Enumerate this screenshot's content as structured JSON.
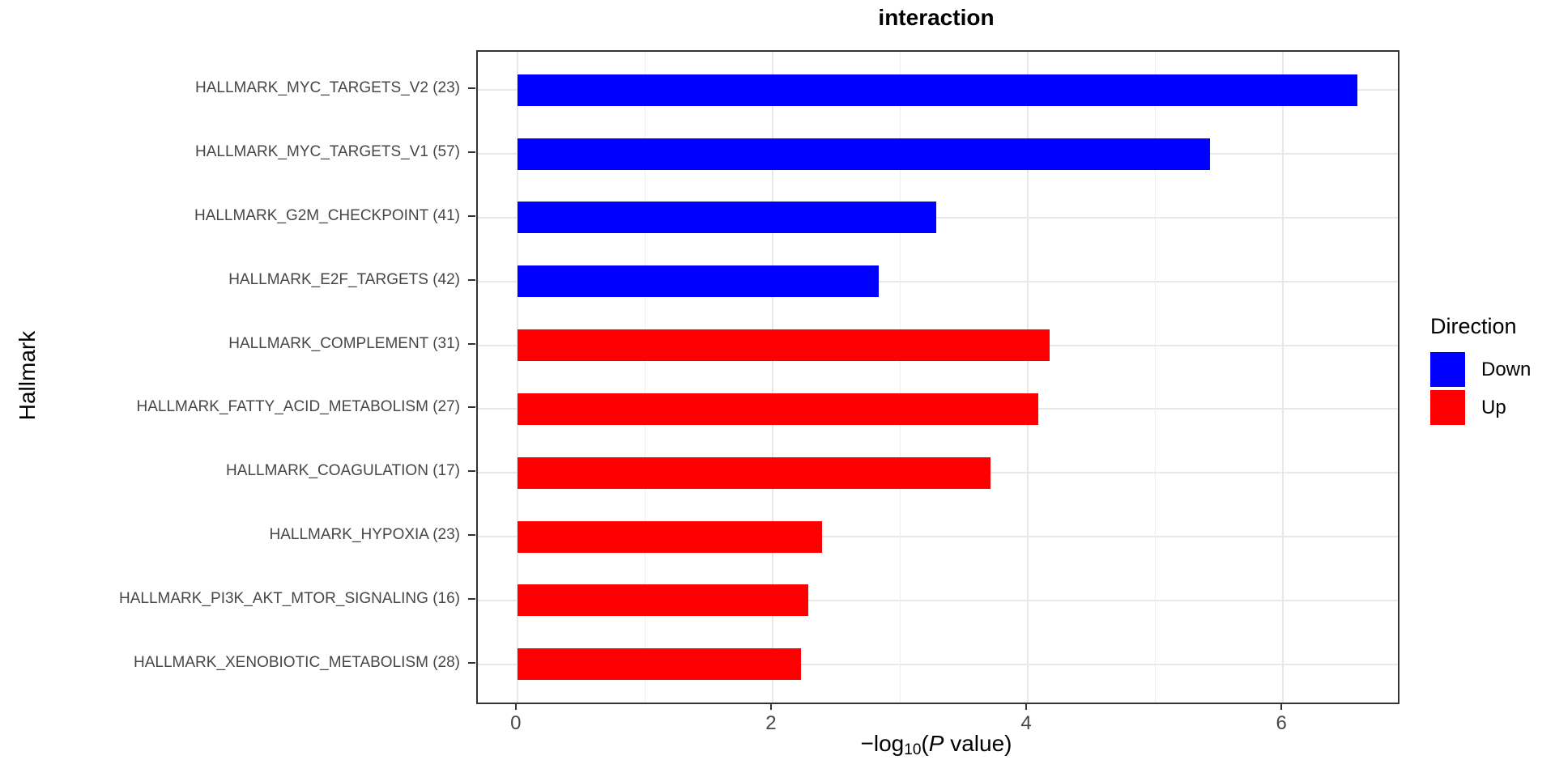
{
  "figure": {
    "title": "interaction",
    "y_axis_title": "Hallmark",
    "x_axis_label_parts": {
      "minus_log": "−log",
      "subscript": "10",
      "open_paren": "(",
      "p_italic": "P",
      "suffix": " value)"
    }
  },
  "legend": {
    "title": "Direction",
    "items": [
      {
        "label": "Down",
        "color": "#0000FF"
      },
      {
        "label": "Up",
        "color": "#FF0000"
      }
    ]
  },
  "chart_data": {
    "type": "bar",
    "orientation": "horizontal",
    "title": "interaction",
    "xlabel": "-log10(P value)",
    "ylabel": "Hallmark",
    "xlim": [
      -0.31,
      6.9
    ],
    "x_ticks": [
      0,
      2,
      4,
      6
    ],
    "x_minor_gridlines": [
      1,
      3,
      5
    ],
    "grid": true,
    "legend_position": "right",
    "direction_colors": {
      "Down": "#0000FF",
      "Up": "#FF0000"
    },
    "bars": [
      {
        "label": "HALLMARK_MYC_TARGETS_V2 (23)",
        "gene_set": "HALLMARK_MYC_TARGETS_V2",
        "count": 23,
        "value": 6.58,
        "direction": "Down"
      },
      {
        "label": "HALLMARK_MYC_TARGETS_V1 (57)",
        "gene_set": "HALLMARK_MYC_TARGETS_V1",
        "count": 57,
        "value": 5.43,
        "direction": "Down"
      },
      {
        "label": "HALLMARK_G2M_CHECKPOINT (41)",
        "gene_set": "HALLMARK_G2M_CHECKPOINT",
        "count": 41,
        "value": 3.28,
        "direction": "Down"
      },
      {
        "label": "HALLMARK_E2F_TARGETS (42)",
        "gene_set": "HALLMARK_E2F_TARGETS",
        "count": 42,
        "value": 2.83,
        "direction": "Down"
      },
      {
        "label": "HALLMARK_COMPLEMENT (31)",
        "gene_set": "HALLMARK_COMPLEMENT",
        "count": 31,
        "value": 4.17,
        "direction": "Up"
      },
      {
        "label": "HALLMARK_FATTY_ACID_METABOLISM (27)",
        "gene_set": "HALLMARK_FATTY_ACID_METABOLISM",
        "count": 27,
        "value": 4.08,
        "direction": "Up"
      },
      {
        "label": "HALLMARK_COAGULATION (17)",
        "gene_set": "HALLMARK_COAGULATION",
        "count": 17,
        "value": 3.71,
        "direction": "Up"
      },
      {
        "label": "HALLMARK_HYPOXIA (23)",
        "gene_set": "HALLMARK_HYPOXIA",
        "count": 23,
        "value": 2.39,
        "direction": "Up"
      },
      {
        "label": "HALLMARK_PI3K_AKT_MTOR_SIGNALING (16)",
        "gene_set": "HALLMARK_PI3K_AKT_MTOR_SIGNALING",
        "count": 16,
        "value": 2.28,
        "direction": "Up"
      },
      {
        "label": "HALLMARK_XENOBIOTIC_METABOLISM (28)",
        "gene_set": "HALLMARK_XENOBIOTIC_METABOLISM",
        "count": 28,
        "value": 2.22,
        "direction": "Up"
      }
    ]
  }
}
